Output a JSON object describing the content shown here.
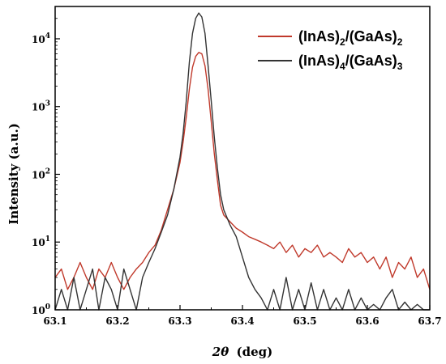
{
  "chart_data": {
    "type": "line",
    "title": "",
    "xlabel_symbol": "2θ",
    "xlabel_unit": "(deg)",
    "ylabel": "Intensity (a.u.)",
    "xlim": [
      63.1,
      63.7
    ],
    "ylim": [
      1,
      30000
    ],
    "yscale": "log",
    "grid": false,
    "legend_position": "top-right",
    "x_ticks": [
      "63.1",
      "63.2",
      "63.3",
      "63.4",
      "63.5",
      "63.6",
      "63.7"
    ],
    "y_ticks": [
      {
        "base": "10",
        "exp": "0",
        "value": 1
      },
      {
        "base": "10",
        "exp": "1",
        "value": 10
      },
      {
        "base": "10",
        "exp": "2",
        "value": 100
      },
      {
        "base": "10",
        "exp": "3",
        "value": 1000
      },
      {
        "base": "10",
        "exp": "4",
        "value": 10000
      }
    ],
    "series": [
      {
        "name": "(InAs)2/(GaAs)2",
        "legend_parts": [
          [
            "(InAs)",
            ""
          ],
          [
            "2",
            "sub"
          ],
          [
            "/(GaAs)",
            ""
          ],
          [
            "2",
            "sub"
          ]
        ],
        "color": "#c0392b",
        "x": [
          63.1,
          63.11,
          63.12,
          63.13,
          63.14,
          63.15,
          63.16,
          63.17,
          63.18,
          63.19,
          63.2,
          63.21,
          63.22,
          63.23,
          63.24,
          63.25,
          63.26,
          63.27,
          63.28,
          63.29,
          63.3,
          63.305,
          63.31,
          63.315,
          63.32,
          63.325,
          63.33,
          63.335,
          63.34,
          63.345,
          63.35,
          63.355,
          63.36,
          63.365,
          63.37,
          63.38,
          63.39,
          63.4,
          63.41,
          63.42,
          63.43,
          63.44,
          63.45,
          63.46,
          63.47,
          63.48,
          63.49,
          63.5,
          63.51,
          63.52,
          63.53,
          63.54,
          63.55,
          63.56,
          63.57,
          63.58,
          63.59,
          63.6,
          63.61,
          63.62,
          63.63,
          63.64,
          63.65,
          63.66,
          63.67,
          63.68,
          63.69,
          63.7
        ],
        "y": [
          3,
          4,
          2,
          3,
          5,
          3,
          2,
          4,
          3,
          5,
          3,
          2,
          3,
          4,
          5,
          7,
          9,
          15,
          30,
          60,
          150,
          300,
          700,
          1800,
          3800,
          5500,
          6300,
          6000,
          4000,
          1800,
          600,
          200,
          80,
          35,
          25,
          20,
          16,
          14,
          12,
          11,
          10,
          9,
          8,
          10,
          7,
          9,
          6,
          8,
          7,
          9,
          6,
          7,
          6,
          5,
          8,
          6,
          7,
          5,
          6,
          4,
          6,
          3,
          5,
          4,
          6,
          3,
          4,
          2
        ]
      },
      {
        "name": "(InAs)4/(GaAs)3",
        "legend_parts": [
          [
            "(InAs)",
            ""
          ],
          [
            "4",
            "sub"
          ],
          [
            "/(GaAs)",
            ""
          ],
          [
            "3",
            "sub"
          ]
        ],
        "color": "#333333",
        "x": [
          63.1,
          63.11,
          63.12,
          63.13,
          63.14,
          63.15,
          63.16,
          63.17,
          63.18,
          63.19,
          63.2,
          63.21,
          63.22,
          63.23,
          63.24,
          63.25,
          63.26,
          63.27,
          63.28,
          63.29,
          63.3,
          63.305,
          63.31,
          63.315,
          63.32,
          63.325,
          63.33,
          63.335,
          63.34,
          63.345,
          63.35,
          63.355,
          63.36,
          63.365,
          63.37,
          63.38,
          63.39,
          63.4,
          63.41,
          63.42,
          63.43,
          63.44,
          63.45,
          63.46,
          63.47,
          63.48,
          63.49,
          63.5,
          63.51,
          63.52,
          63.53,
          63.54,
          63.55,
          63.56,
          63.57,
          63.58,
          63.59,
          63.6,
          63.61,
          63.62,
          63.63,
          63.64,
          63.65,
          63.66,
          63.67,
          63.68,
          63.69,
          63.7
        ],
        "y": [
          1,
          2,
          1,
          3,
          1,
          2,
          4,
          1,
          3,
          2,
          1,
          4,
          2,
          1,
          3,
          5,
          8,
          14,
          25,
          60,
          180,
          400,
          1200,
          4500,
          12000,
          20000,
          24000,
          21000,
          12000,
          4000,
          1200,
          350,
          120,
          50,
          30,
          18,
          12,
          6,
          3,
          2,
          1.5,
          1,
          2,
          1,
          3,
          1,
          2,
          1,
          2.5,
          1,
          2,
          1,
          1.5,
          1,
          2,
          1,
          1.5,
          1,
          1.2,
          1,
          1.5,
          2,
          1,
          1.3,
          1,
          1.2,
          1,
          1
        ]
      }
    ]
  }
}
